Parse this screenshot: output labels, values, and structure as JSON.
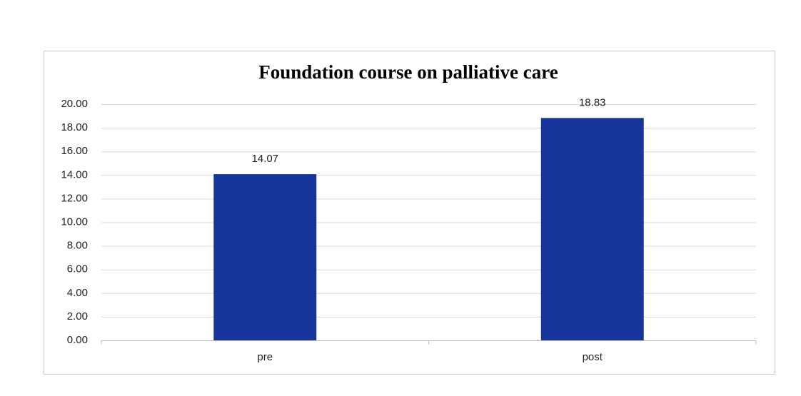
{
  "chart_data": {
    "type": "bar",
    "title": "Foundation course on palliative care",
    "categories": [
      "pre",
      "post"
    ],
    "values": [
      14.07,
      18.83
    ],
    "color": "#16349a",
    "ylim": [
      0,
      20
    ],
    "yticks": [
      {
        "value": 0,
        "label": "0.00"
      },
      {
        "value": 2,
        "label": "2.00"
      },
      {
        "value": 4,
        "label": "4.00"
      },
      {
        "value": 6,
        "label": "6.00"
      },
      {
        "value": 8,
        "label": "8.00"
      },
      {
        "value": 10,
        "label": "10.00"
      },
      {
        "value": 12,
        "label": "12.00"
      },
      {
        "value": 14,
        "label": "14.00"
      },
      {
        "value": 16,
        "label": "16.00"
      },
      {
        "value": 18,
        "label": "18.00"
      },
      {
        "value": 20,
        "label": "20.00"
      }
    ],
    "grid": true
  }
}
